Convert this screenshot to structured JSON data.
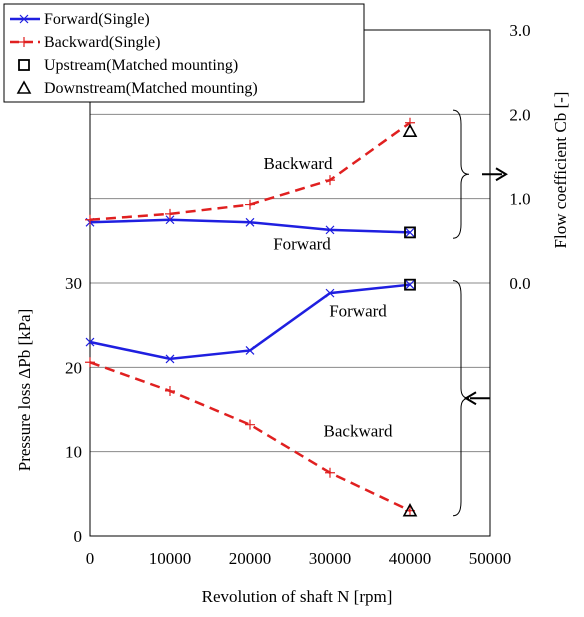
{
  "chart_data": {
    "type": "line",
    "title": "",
    "xlabel": "Revolution of shaft  N [rpm]",
    "ylabel_left": "Pressure loss  ΔPb [kPa]",
    "ylabel_right": "Flow coefficient  Cb [-]",
    "xlim": [
      0,
      50000
    ],
    "xticks": [
      0,
      10000,
      20000,
      30000,
      40000,
      50000
    ],
    "ylim_left": [
      0,
      60
    ],
    "yticks_left": [
      0,
      10,
      20,
      30
    ],
    "ylim_right": [
      -3,
      3
    ],
    "yticks_right": [
      "3.0",
      "2.0",
      "1.0",
      "0.0"
    ],
    "grid": "horizontal",
    "legend_position": "top-left",
    "legend": [
      {
        "label": "Forward(Single)",
        "marker": "x",
        "color": "#1f1fe0",
        "style": "solid"
      },
      {
        "label": "Backward(Single)",
        "marker": "+",
        "color": "#e02020",
        "style": "dashed"
      },
      {
        "label": "Upstream(Matched mounting)",
        "marker": "square",
        "color": "#000000",
        "style": "none"
      },
      {
        "label": "Downstream(Matched mounting)",
        "marker": "triangle",
        "color": "#000000",
        "style": "none"
      }
    ],
    "series": [
      {
        "name": "Forward(Single)",
        "axis": "right",
        "color": "#1f1fe0",
        "dash": false,
        "marker": "x",
        "x": [
          0,
          10000,
          20000,
          30000,
          40000
        ],
        "y": [
          0.72,
          0.75,
          0.72,
          0.63,
          0.6
        ]
      },
      {
        "name": "Backward(Single)",
        "axis": "right",
        "color": "#e02020",
        "dash": true,
        "marker": "+",
        "x": [
          0,
          10000,
          20000,
          30000,
          40000
        ],
        "y": [
          0.75,
          0.82,
          0.93,
          1.22,
          1.9
        ]
      },
      {
        "name": "Forward(Single)",
        "axis": "left",
        "color": "#1f1fe0",
        "dash": false,
        "marker": "x",
        "x": [
          0,
          10000,
          20000,
          30000,
          40000
        ],
        "y": [
          23.0,
          21.0,
          22.0,
          28.8,
          29.8
        ]
      },
      {
        "name": "Backward(Single)",
        "axis": "left",
        "color": "#e02020",
        "dash": true,
        "marker": "+",
        "x": [
          0,
          10000,
          20000,
          30000,
          40000
        ],
        "y": [
          20.6,
          17.2,
          13.2,
          7.5,
          3.0
        ]
      }
    ],
    "matched_points": [
      {
        "name": "Upstream(Matched mounting)",
        "marker": "square",
        "axis": "right",
        "x": 40000,
        "y": 0.6
      },
      {
        "name": "Downstream(Matched mounting)",
        "marker": "triangle",
        "axis": "right",
        "x": 40000,
        "y": 1.8
      },
      {
        "name": "Upstream(Matched mounting)",
        "marker": "square",
        "axis": "left",
        "x": 40000,
        "y": 29.8
      },
      {
        "name": "Downstream(Matched mounting)",
        "marker": "triangle",
        "axis": "left",
        "x": 40000,
        "y": 3.0
      }
    ],
    "annotations": [
      {
        "text": "Backward",
        "axis": "right",
        "x": 26000,
        "y": 1.35
      },
      {
        "text": "Forward",
        "axis": "right",
        "x": 26500,
        "y": 0.4
      },
      {
        "text": "Forward",
        "axis": "left",
        "x": 33500,
        "y": 26.0
      },
      {
        "text": "Backward",
        "axis": "left",
        "x": 33500,
        "y": 11.8
      }
    ]
  }
}
